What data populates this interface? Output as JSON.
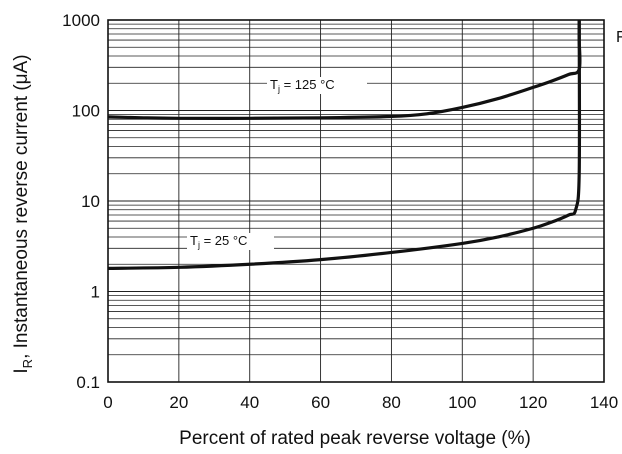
{
  "chart_data": {
    "type": "line",
    "title": "",
    "xlabel": "Percent of rated peak reverse voltage (%)",
    "ylabel_main": "I",
    "ylabel_sub": "R",
    "ylabel_rest": ", Instantaneous reverse current (μA)",
    "xlim": [
      0,
      140
    ],
    "ylim": [
      0.1,
      1000
    ],
    "yscale": "log",
    "grid": true,
    "x_ticks": [
      "0",
      "20",
      "40",
      "60",
      "80",
      "100",
      "120",
      "140"
    ],
    "y_ticks": [
      "0.1",
      "1",
      "10",
      "100",
      "1000"
    ],
    "edge_text": "F",
    "series": [
      {
        "label_main": "T",
        "label_sub": "j",
        "label_rest": " = 125 °C",
        "x": [
          0,
          10,
          20,
          40,
          60,
          80,
          90,
          100,
          110,
          120,
          125,
          130,
          133,
          133,
          133
        ],
        "y": [
          85,
          83,
          82,
          82,
          83,
          86,
          92,
          108,
          135,
          180,
          210,
          250,
          285,
          600,
          1000
        ]
      },
      {
        "label_main": "T",
        "label_sub": "j",
        "label_rest": " = 25 °C",
        "x": [
          0,
          20,
          40,
          60,
          80,
          100,
          110,
          120,
          125,
          130,
          132,
          133,
          133
        ],
        "y": [
          1.8,
          1.85,
          2.0,
          2.25,
          2.7,
          3.4,
          4.0,
          5.0,
          5.8,
          7.0,
          8.0,
          20,
          1000
        ]
      }
    ]
  }
}
